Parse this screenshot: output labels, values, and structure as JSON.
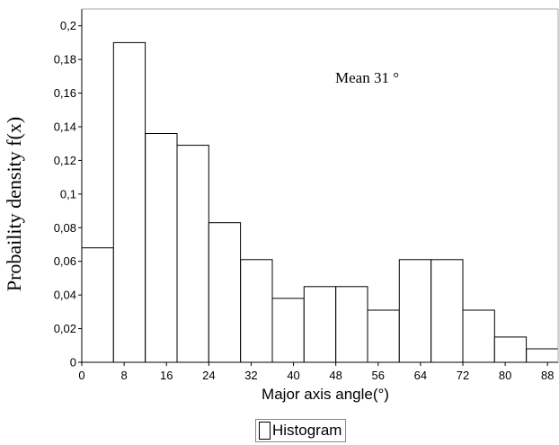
{
  "chart_data": {
    "type": "bar",
    "bin_edges": [
      0,
      6,
      12,
      18,
      24,
      30,
      36,
      42,
      48,
      54,
      60,
      66,
      72,
      78,
      84,
      90
    ],
    "values": [
      0.068,
      0.19,
      0.136,
      0.129,
      0.083,
      0.061,
      0.038,
      0.045,
      0.045,
      0.031,
      0.061,
      0.061,
      0.031,
      0.015,
      0.008
    ],
    "xlabel": "Major axis angle(°)",
    "ylabel": "Probaility density f(x)",
    "xticks": [
      "0",
      "8",
      "16",
      "24",
      "32",
      "40",
      "48",
      "56",
      "64",
      "72",
      "80",
      "88"
    ],
    "xtick_values": [
      0,
      8,
      16,
      24,
      32,
      40,
      48,
      56,
      64,
      72,
      80,
      88
    ],
    "yticks": [
      "0",
      "0,02",
      "0,04",
      "0,06",
      "0,08",
      "0,1",
      "0,12",
      "0,14",
      "0,16",
      "0,18",
      "0,2"
    ],
    "ytick_values": [
      0,
      0.02,
      0.04,
      0.06,
      0.08,
      0.1,
      0.12,
      0.14,
      0.16,
      0.18,
      0.2
    ],
    "xlim": [
      0,
      90
    ],
    "ylim": [
      0,
      0.21
    ],
    "annotation": "Mean 31 °",
    "legend": {
      "position": "bottom-center",
      "label": "Histogram"
    },
    "grid": false,
    "colors": {
      "bar_fill": "#ffffff",
      "bar_edge": "#000000",
      "frame": "#000000",
      "frame_light": "#aaaaaa"
    }
  }
}
